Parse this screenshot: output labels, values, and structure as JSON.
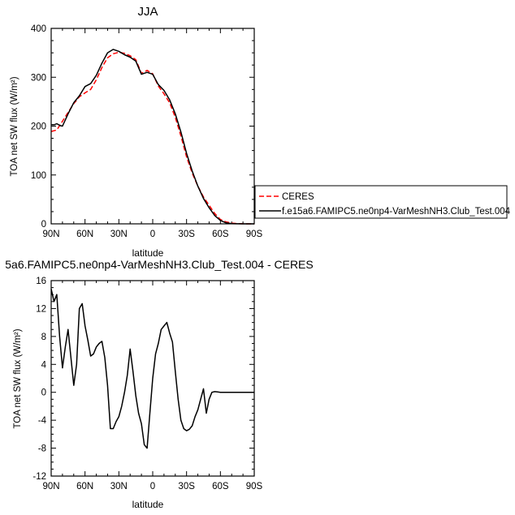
{
  "chart_data": [
    {
      "type": "line",
      "title": "JJA",
      "xlabel": "latitude",
      "ylabel": "TOA net SW flux (W/m²)",
      "xlim": [
        90,
        -90
      ],
      "ylim": [
        0,
        400
      ],
      "xticks": [
        90,
        60,
        30,
        0,
        -30,
        -60,
        -90
      ],
      "xtick_labels": [
        "90N",
        "60N",
        "30N",
        "0",
        "30S",
        "60S",
        "90S"
      ],
      "yticks": [
        0,
        100,
        200,
        300,
        400
      ],
      "ytick_labels": [
        "0",
        "100",
        "200",
        "300",
        "400"
      ],
      "legend_position": "right",
      "series": [
        {
          "name": "CERES",
          "color": "#ff0000",
          "dash": "dashed",
          "x": [
            90,
            85,
            80,
            75,
            70,
            65,
            60,
            55,
            50,
            45,
            40,
            35,
            30,
            25,
            20,
            15,
            10,
            5,
            0,
            -5,
            -10,
            -15,
            -20,
            -25,
            -30,
            -35,
            -40,
            -45,
            -50,
            -55,
            -60,
            -65,
            -70,
            -75,
            -80,
            -85,
            -90
          ],
          "y": [
            189,
            192,
            210,
            228,
            246,
            260,
            268,
            275,
            295,
            320,
            340,
            348,
            351,
            349,
            344,
            336,
            308,
            314,
            307,
            282,
            266,
            248,
            218,
            180,
            137,
            104,
            77,
            55,
            38,
            21,
            9,
            4,
            1.5,
            0.5,
            0.1,
            0,
            0
          ]
        },
        {
          "name": "f.e15a6.FAMIPC5.ne0np4-VarMeshNH3.Club_Test.004",
          "color": "#000000",
          "dash": "solid",
          "x": [
            90,
            87,
            85,
            82,
            80,
            75,
            70,
            65,
            60,
            55,
            50,
            45,
            40,
            35,
            30,
            25,
            20,
            15,
            10,
            5,
            0,
            -5,
            -10,
            -15,
            -20,
            -25,
            -30,
            -35,
            -40,
            -45,
            -50,
            -55,
            -60,
            -65,
            -70,
            -75,
            -80,
            -85,
            -90
          ],
          "y": [
            203,
            203,
            205,
            201,
            200,
            225,
            248,
            262,
            281,
            287,
            304,
            329,
            350,
            357,
            353,
            346,
            341,
            333,
            306,
            310,
            306,
            285,
            273,
            254,
            225,
            188,
            144,
            108,
            77,
            52,
            33,
            17,
            7,
            2,
            0.5,
            0.1,
            0,
            0,
            0
          ]
        }
      ]
    },
    {
      "type": "line",
      "title": "5a6.FAMIPC5.ne0np4-VarMeshNH3.Club_Test.004 - CERES",
      "xlabel": "latitude",
      "ylabel": "TOA net SW flux (W/m²)",
      "xlim": [
        90,
        -90
      ],
      "ylim": [
        -12,
        16
      ],
      "xticks": [
        90,
        60,
        30,
        0,
        -30,
        -60,
        -90
      ],
      "xtick_labels": [
        "90N",
        "60N",
        "30N",
        "0",
        "30S",
        "60S",
        "90S"
      ],
      "yticks": [
        -12,
        -8,
        -4,
        0,
        4,
        8,
        12,
        16
      ],
      "ytick_labels": [
        "-12",
        "-8",
        "-4",
        "0",
        "4",
        "8",
        "12",
        "16"
      ],
      "series": [
        {
          "color": "#000000",
          "dash": "solid",
          "x": [
            90,
            87.5,
            85,
            82.5,
            80,
            77.5,
            75,
            72.5,
            70,
            67.5,
            65,
            62.5,
            60,
            57.5,
            55,
            52.5,
            50,
            47.5,
            45,
            42.5,
            40,
            37.5,
            35,
            32.5,
            30,
            27.5,
            25,
            22.5,
            20,
            17.5,
            15,
            12.5,
            10,
            7.5,
            5,
            2.5,
            0,
            -2.5,
            -5,
            -7.5,
            -10,
            -12.5,
            -15,
            -17.5,
            -20,
            -22.5,
            -25,
            -27.5,
            -30,
            -32.5,
            -35,
            -37.5,
            -40,
            -42.5,
            -45,
            -47.5,
            -50,
            -52.5,
            -55,
            -57.5,
            -60,
            -62.5,
            -65,
            -67.5,
            -70,
            -72.5,
            -75,
            -77.5,
            -80,
            -82.5,
            -85,
            -87.5,
            -90
          ],
          "y": [
            14.8,
            13.0,
            14.0,
            8.0,
            3.5,
            6.5,
            9.0,
            5.0,
            1.0,
            4.0,
            12.0,
            12.7,
            9.5,
            7.5,
            5.2,
            5.5,
            6.5,
            7.0,
            7.3,
            5.0,
            1.0,
            -5.2,
            -5.2,
            -4.2,
            -3.5,
            -2.0,
            0.0,
            2.5,
            6.2,
            3.0,
            -0.5,
            -3.0,
            -4.5,
            -7.5,
            -8.0,
            -3.0,
            2.0,
            5.5,
            7.0,
            9.0,
            9.5,
            10.0,
            8.5,
            7.2,
            3.0,
            -1.0,
            -4.0,
            -5.2,
            -5.5,
            -5.3,
            -4.8,
            -3.5,
            -2.5,
            -1.0,
            0.5,
            -3.0,
            -1.0,
            0.0,
            0.1,
            0.05,
            0.0,
            0.0,
            0.0,
            0.0,
            0.0,
            0.0,
            0.0,
            0.0,
            0.0,
            0.0,
            0.0,
            0.0,
            0.0
          ]
        }
      ]
    }
  ]
}
